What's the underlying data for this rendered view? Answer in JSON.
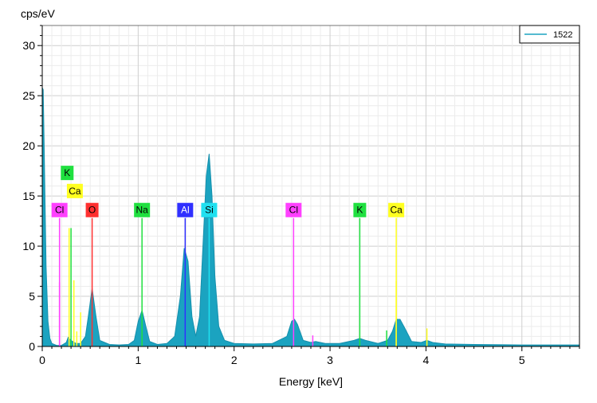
{
  "chart_data": {
    "type": "area",
    "ylabel": "cps/eV",
    "xlabel": "Energy [keV]",
    "xlim": [
      0,
      5.6
    ],
    "ylim": [
      0,
      32
    ],
    "xticks": [
      "0",
      "1",
      "2",
      "3",
      "4",
      "5"
    ],
    "yticks": [
      "0",
      "5",
      "10",
      "15",
      "20",
      "25",
      "30"
    ],
    "grid": true,
    "legend_placement": "top-right",
    "series": [
      {
        "name": "1522",
        "color": "#1ba3c0",
        "x": [
          0.0,
          0.01,
          0.02,
          0.04,
          0.06,
          0.08,
          0.1,
          0.15,
          0.2,
          0.25,
          0.27,
          0.3,
          0.35,
          0.4,
          0.45,
          0.48,
          0.52,
          0.56,
          0.6,
          0.7,
          0.8,
          0.9,
          0.96,
          1.0,
          1.04,
          1.08,
          1.12,
          1.2,
          1.3,
          1.38,
          1.44,
          1.48,
          1.52,
          1.56,
          1.6,
          1.64,
          1.68,
          1.71,
          1.74,
          1.77,
          1.8,
          1.84,
          1.9,
          2.0,
          2.2,
          2.4,
          2.55,
          2.6,
          2.63,
          2.66,
          2.72,
          2.8,
          2.85,
          2.95,
          3.1,
          3.25,
          3.31,
          3.37,
          3.5,
          3.6,
          3.65,
          3.69,
          3.73,
          3.78,
          3.85,
          3.95,
          4.01,
          4.07,
          4.2,
          4.5,
          5.0,
          5.6
        ],
        "y": [
          25.8,
          25.6,
          20.0,
          8.0,
          2.5,
          0.8,
          0.3,
          0.1,
          0.1,
          0.4,
          0.9,
          0.6,
          0.3,
          0.3,
          1.0,
          3.0,
          5.8,
          3.0,
          0.6,
          0.2,
          0.15,
          0.2,
          0.6,
          2.5,
          3.6,
          2.0,
          0.5,
          0.2,
          0.3,
          1.0,
          5.0,
          9.8,
          8.5,
          3.0,
          1.0,
          3.0,
          11.0,
          17.0,
          19.2,
          15.0,
          7.0,
          2.0,
          0.6,
          0.3,
          0.25,
          0.3,
          1.0,
          2.5,
          2.7,
          2.2,
          0.6,
          0.4,
          0.5,
          0.3,
          0.3,
          0.6,
          0.8,
          0.6,
          0.3,
          0.6,
          1.5,
          2.7,
          2.7,
          1.8,
          0.5,
          0.4,
          0.6,
          0.4,
          0.25,
          0.2,
          0.15,
          0.15
        ]
      }
    ],
    "element_markers": [
      {
        "label": "Cl",
        "energy": 0.18,
        "color": "#ff40ff",
        "line_to": 12.8,
        "tag_y": 13.6
      },
      {
        "label": "K",
        "energy": 0.26,
        "color": "#20e040",
        "line_to": 12.8,
        "tag_y": 17.3
      },
      {
        "label": "Ca",
        "energy": 0.34,
        "color": "#ffff20",
        "line_to": 12.8,
        "tag_y": 15.5
      },
      {
        "label": "O",
        "energy": 0.52,
        "color": "#ff3030",
        "line_to": 12.8,
        "tag_y": 13.6
      },
      {
        "label": "Na",
        "energy": 1.04,
        "color": "#20e040",
        "line_to": 12.8,
        "tag_y": 13.6
      },
      {
        "label": "Al",
        "energy": 1.49,
        "color": "#3030ff",
        "line_to": 12.8,
        "tag_y": 13.6
      },
      {
        "label": "Si",
        "energy": 1.74,
        "color": "#20e0f0",
        "line_to": 12.8,
        "tag_y": 13.6
      },
      {
        "label": "Cl",
        "energy": 2.62,
        "color": "#ff40ff",
        "line_to": 12.8,
        "tag_y": 13.6
      },
      {
        "label": "K",
        "energy": 3.31,
        "color": "#20e040",
        "line_to": 12.8,
        "tag_y": 13.6
      },
      {
        "label": "Ca",
        "energy": 3.69,
        "color": "#ffff20",
        "line_to": 12.8,
        "tag_y": 13.6
      }
    ],
    "minor_lines": [
      {
        "energy": 0.18,
        "color": "#ff40ff",
        "y": 6.4
      },
      {
        "energy": 0.28,
        "color": "#ffff20",
        "y": 11.8
      },
      {
        "energy": 0.3,
        "color": "#20e040",
        "y": 11.8
      },
      {
        "energy": 0.33,
        "color": "#ffff20",
        "y": 6.6
      },
      {
        "energy": 0.36,
        "color": "#ffff20",
        "y": 1.5
      },
      {
        "energy": 0.4,
        "color": "#ffff20",
        "y": 3.4
      },
      {
        "energy": 2.82,
        "color": "#ff40ff",
        "y": 1.1
      },
      {
        "energy": 3.59,
        "color": "#20e040",
        "y": 1.6
      },
      {
        "energy": 3.69,
        "color": "#ffff20",
        "y": 6.5
      },
      {
        "energy": 4.01,
        "color": "#ffff20",
        "y": 1.8
      }
    ]
  }
}
